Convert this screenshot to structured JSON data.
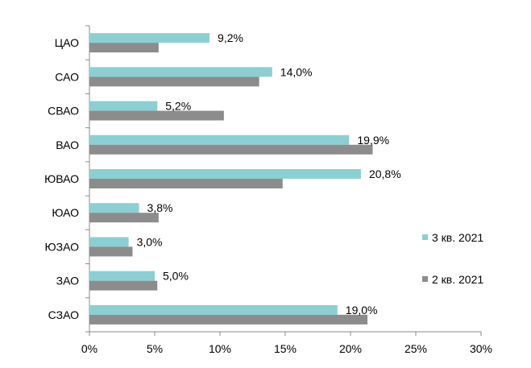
{
  "chart_data": {
    "type": "bar",
    "orientation": "horizontal",
    "categories": [
      "ЦАО",
      "САО",
      "СВАО",
      "ВАО",
      "ЮВАО",
      "ЮАО",
      "ЮЗАО",
      "ЗАО",
      "СЗАО"
    ],
    "series": [
      {
        "name": "3 кв. 2021",
        "values": [
          9.2,
          14.0,
          5.2,
          19.9,
          20.8,
          3.8,
          3.0,
          5.0,
          19.0
        ],
        "labels": [
          "9,2%",
          "14,0%",
          "5,2%",
          "19,9%",
          "20,8%",
          "3,8%",
          "3,0%",
          "5,0%",
          "19,0%"
        ]
      },
      {
        "name": "2 кв. 2021",
        "values": [
          5.3,
          13.0,
          10.3,
          21.7,
          14.8,
          5.3,
          3.3,
          5.2,
          21.3
        ]
      }
    ],
    "xlim": [
      0,
      30
    ],
    "xticks": [
      "0%",
      "5%",
      "10%",
      "15%",
      "20%",
      "25%",
      "30%"
    ],
    "title": "",
    "xlabel": "",
    "ylabel": "",
    "grid": false,
    "legend": "right",
    "colors": {
      "3 кв. 2021": "#8ccfd2",
      "2 кв. 2021": "#8c8c8c"
    }
  }
}
